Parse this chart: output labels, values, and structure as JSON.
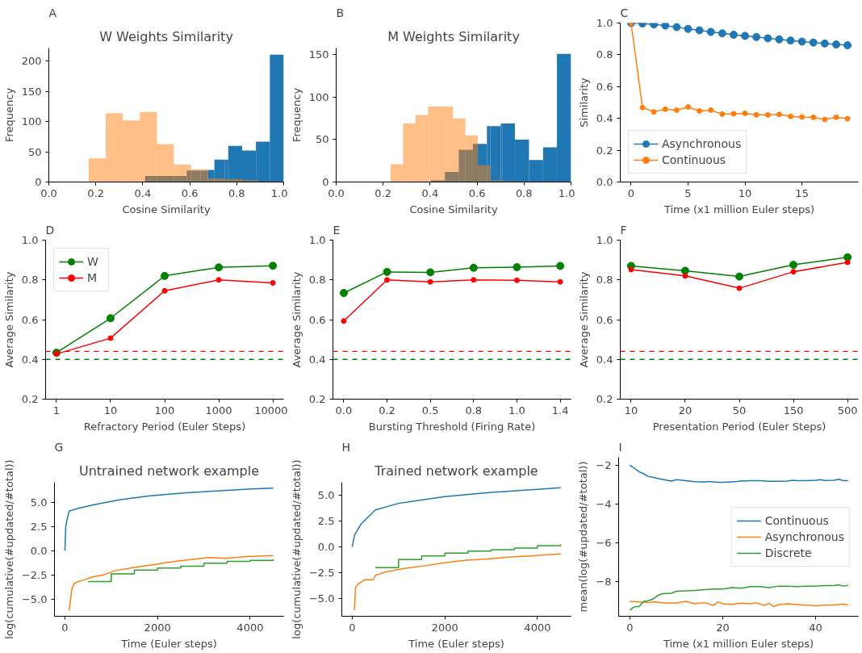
{
  "chart_data": [
    {
      "type": "histogram",
      "title": "W Weights Similarity",
      "annotations": [
        "A"
      ],
      "xlabel": "Cosine Similarity",
      "ylabel": "Frequency",
      "xlim": [
        0,
        1
      ],
      "xticks": [
        {
          "value": 0,
          "label": "0.0"
        },
        {
          "value": 0.2,
          "label": "0.2"
        },
        {
          "value": 0.4,
          "label": "0.4"
        },
        {
          "value": 0.6,
          "label": "0.6"
        },
        {
          "value": 0.8,
          "label": "0.8"
        },
        {
          "value": 1,
          "label": "1.0"
        }
      ],
      "ylim": [
        0,
        222
      ],
      "yticks": [
        0,
        50,
        100,
        150,
        200
      ],
      "series": [
        {
          "color": "#1f77b4",
          "values": [
            null,
            null,
            null,
            null,
            10,
            10,
            10,
            10,
            10,
            19,
            19,
            19,
            20,
            37,
            37,
            60,
            52,
            67,
            67,
            211
          ]
        },
        {
          "color": "#ff7f0e",
          "values": [
            39,
            114,
            102,
            116,
            116,
            63,
            63,
            63,
            29,
            29,
            21,
            21,
            6,
            6,
            5,
            5,
            3,
            3,
            null,
            null
          ]
        }
      ],
      "bins": [
        0.17,
        0.2425,
        0.315,
        0.3875,
        0.41,
        0.46,
        0.469,
        0.528,
        0.5325,
        0.587,
        0.605,
        0.646,
        0.6775,
        0.705,
        0.75,
        0.764,
        0.823,
        0.882,
        0.895,
        0.941,
        1.0
      ]
    },
    {
      "type": "histogram",
      "title": "M Weights Similarity",
      "annotations": [
        "B"
      ],
      "xlabel": "Cosine Similarity",
      "ylabel": "Frequency",
      "xlim": [
        0,
        1
      ],
      "xticks": [
        {
          "value": 0,
          "label": "0.0"
        },
        {
          "value": 0.2,
          "label": "0.2"
        },
        {
          "value": 0.4,
          "label": "0.4"
        },
        {
          "value": 0.6,
          "label": "0.6"
        },
        {
          "value": 0.8,
          "label": "0.8"
        },
        {
          "value": 1,
          "label": "1.0"
        }
      ],
      "ylim": [
        0,
        158
      ],
      "yticks": [
        0,
        50,
        100,
        150
      ],
      "series": [
        {
          "color": "#1f77b4",
          "values": [
            null,
            null,
            null,
            null,
            2,
            2,
            12,
            12,
            38,
            38,
            45,
            45,
            66,
            66,
            69,
            69,
            50,
            26,
            41,
            151
          ]
        },
        {
          "color": "#ff7f0e",
          "values": [
            21,
            69,
            79,
            89,
            89,
            89,
            89,
            75,
            75,
            55,
            55,
            20,
            20,
            2,
            2,
            1,
            null,
            null,
            null,
            null
          ]
        }
      ],
      "bins": [
        0.232,
        0.285,
        0.338,
        0.391,
        0.403,
        0.444,
        0.463,
        0.497,
        0.522,
        0.55,
        0.582,
        0.603,
        0.642,
        0.656,
        0.701,
        0.709,
        0.761,
        0.821,
        0.881,
        0.94,
        1.0
      ]
    },
    {
      "type": "line",
      "annotations": [
        "C"
      ],
      "xlabel": "Time (x1 million Euler steps)",
      "ylabel": "Similarity",
      "xlim": [
        -0.95,
        19.95
      ],
      "xticks": [
        0,
        5,
        10,
        15
      ],
      "ylim": [
        0,
        1
      ],
      "yticks": [
        {
          "value": 0,
          "label": "0.0"
        },
        {
          "value": 0.2,
          "label": "0.2"
        },
        {
          "value": 0.4,
          "label": "0.4"
        },
        {
          "value": 0.6,
          "label": "0.6"
        },
        {
          "value": 0.8,
          "label": "0.8"
        },
        {
          "value": 1,
          "label": "1.0"
        }
      ],
      "marker": "circle",
      "legend": "bottom left",
      "x": [
        0,
        1,
        2,
        3,
        4,
        5,
        6,
        7,
        8,
        9,
        10,
        11,
        12,
        13,
        14,
        15,
        16,
        17,
        18,
        19
      ],
      "series": [
        {
          "name": "Asynchronous",
          "color": "#1f77b4",
          "values": [
            1.0,
            0.997,
            0.991,
            0.984,
            0.974,
            0.963,
            0.954,
            0.944,
            0.935,
            0.926,
            0.919,
            0.912,
            0.904,
            0.897,
            0.89,
            0.883,
            0.877,
            0.871,
            0.865,
            0.86
          ]
        },
        {
          "name": "Continuous",
          "color": "#ff7f0e",
          "values": [
            1.0,
            0.468,
            0.441,
            0.458,
            0.452,
            0.472,
            0.447,
            0.452,
            0.427,
            0.429,
            0.432,
            0.422,
            0.422,
            0.425,
            0.413,
            0.409,
            0.407,
            0.393,
            0.407,
            0.398
          ]
        }
      ]
    },
    {
      "type": "line",
      "annotations": [
        "D"
      ],
      "xlabel": "Refractory Period (Euler Steps)",
      "ylabel": "Average Similarity",
      "categories": [
        "1",
        "10",
        "100",
        "1000",
        "10000"
      ],
      "ylim": [
        0.2,
        1
      ],
      "yticks": [
        {
          "value": 0.2,
          "label": "0.2"
        },
        {
          "value": 0.4,
          "label": "0.4"
        },
        {
          "value": 0.6,
          "label": "0.6"
        },
        {
          "value": 0.8,
          "label": "0.8"
        },
        {
          "value": 1,
          "label": "1.0"
        }
      ],
      "marker": "circle",
      "legend": "top left",
      "ref_lines": [
        {
          "axis": "y",
          "value": 0.44,
          "color": "#ff0000",
          "line_style": "dashed"
        },
        {
          "axis": "y",
          "value": 0.4,
          "color": "#008000",
          "line_style": "dashed"
        }
      ],
      "series": [
        {
          "name": "W",
          "color": "#008000",
          "values": [
            0.434,
            0.607,
            0.82,
            0.863,
            0.871
          ]
        },
        {
          "name": "M",
          "color": "#ff0000",
          "values": [
            0.427,
            0.507,
            0.745,
            0.8,
            0.785
          ]
        }
      ]
    },
    {
      "type": "line",
      "annotations": [
        "E"
      ],
      "xlabel": "Bursting Threshold (Firing Rate)",
      "ylabel": "Average Similarity",
      "categories": [
        "0.0",
        "0.2",
        "0.5",
        "0.8",
        "1.0",
        "1.4"
      ],
      "ylim": [
        0.2,
        1
      ],
      "yticks": [
        {
          "value": 0.2,
          "label": "0.2"
        },
        {
          "value": 0.4,
          "label": "0.4"
        },
        {
          "value": 0.6,
          "label": "0.6"
        },
        {
          "value": 0.8,
          "label": "0.8"
        },
        {
          "value": 1,
          "label": "1.0"
        }
      ],
      "marker": "circle",
      "ref_lines": [
        {
          "axis": "y",
          "value": 0.44,
          "color": "#ff0000",
          "line_style": "dashed"
        },
        {
          "axis": "y",
          "value": 0.4,
          "color": "#008000",
          "line_style": "dashed"
        }
      ],
      "series": [
        {
          "color": "#008000",
          "values": [
            0.734,
            0.84,
            0.838,
            0.861,
            0.864,
            0.87
          ]
        },
        {
          "color": "#ff0000",
          "values": [
            0.593,
            0.8,
            0.79,
            0.8,
            0.798,
            0.79
          ]
        }
      ]
    },
    {
      "type": "line",
      "annotations": [
        "F"
      ],
      "xlabel": "Presentation Period (Euler Steps)",
      "ylabel": "Average Similarity",
      "categories": [
        "10",
        "20",
        "50",
        "150",
        "500"
      ],
      "ylim": [
        0.2,
        1
      ],
      "yticks": [
        {
          "value": 0.2,
          "label": "0.2"
        },
        {
          "value": 0.4,
          "label": "0.4"
        },
        {
          "value": 0.6,
          "label": "0.6"
        },
        {
          "value": 0.8,
          "label": "0.8"
        },
        {
          "value": 1,
          "label": "1.0"
        }
      ],
      "marker": "circle",
      "ref_lines": [
        {
          "axis": "y",
          "value": 0.44,
          "color": "#ff0000",
          "line_style": "dashed"
        },
        {
          "axis": "y",
          "value": 0.4,
          "color": "#008000",
          "line_style": "dashed"
        }
      ],
      "series": [
        {
          "color": "#008000",
          "values": [
            0.87,
            0.846,
            0.817,
            0.876,
            0.914
          ]
        },
        {
          "color": "#ff0000",
          "values": [
            0.852,
            0.82,
            0.758,
            0.841,
            0.888
          ]
        }
      ]
    },
    {
      "type": "line",
      "title": "Untrained network example",
      "annotations": [
        "G"
      ],
      "xlabel": "Time (Euler steps)",
      "ylabel": "log(cumulative(#updated/#total))",
      "xlim": [
        -225,
        4725
      ],
      "xticks": [
        0,
        2000,
        4000
      ],
      "ylim": [
        -6.8,
        7.1
      ],
      "yticks": [
        {
          "value": -5,
          "label": "−5.0"
        },
        {
          "value": -2.5,
          "label": "−2.5"
        },
        {
          "value": 0,
          "label": "0.0"
        },
        {
          "value": 2.5,
          "label": "2.5"
        },
        {
          "value": 5,
          "label": "5.0"
        }
      ],
      "series": [
        {
          "color": "#1f77b4",
          "x": [
            0,
            18,
            45,
            90,
            290,
            650,
            1200,
            1840,
            2560,
            3290,
            4020,
            4500
          ],
          "values": [
            0.0,
            2.5,
            3.2,
            4.1,
            4.4,
            4.8,
            5.3,
            5.7,
            6.0,
            6.2,
            6.4,
            6.5
          ]
        },
        {
          "color": "#ff7f0e",
          "x": [
            90,
            120,
            150,
            200,
            290,
            430,
            610,
            840,
            1060,
            1290,
            1560,
            1840,
            2110,
            2380,
            2750,
            3110,
            3470,
            3930,
            4500
          ],
          "values": [
            -6.2,
            -5.2,
            -4.0,
            -3.4,
            -3.2,
            -3.0,
            -2.7,
            -2.5,
            -2.1,
            -1.9,
            -1.7,
            -1.5,
            -1.3,
            -1.1,
            -0.9,
            -0.7,
            -0.8,
            -0.6,
            -0.5
          ]
        },
        {
          "type": "step",
          "color": "#2ca02c",
          "x": [
            500,
            1000,
            1500,
            2000,
            2500,
            3000,
            3500,
            4000,
            4500
          ],
          "values": [
            -3.2,
            -2.4,
            -2.0,
            -1.8,
            -1.6,
            -1.3,
            -1.1,
            -1.0,
            -0.9
          ]
        }
      ]
    },
    {
      "type": "line",
      "title": "Trained network example",
      "annotations": [
        "H"
      ],
      "xlabel": "Time (Euler steps)",
      "ylabel": "log(cumulative(#updated/#total))",
      "xlim": [
        -225,
        4725
      ],
      "xticks": [
        0,
        2000,
        4000
      ],
      "ylim": [
        -6.7,
        6.26
      ],
      "yticks": [
        {
          "value": -5,
          "label": "−5.0"
        },
        {
          "value": -2.5,
          "label": "−2.5"
        },
        {
          "value": 0,
          "label": "0.0"
        },
        {
          "value": 2.5,
          "label": "2.5"
        },
        {
          "value": 5,
          "label": "5.0"
        }
      ],
      "series": [
        {
          "color": "#1f77b4",
          "x": [
            0,
            50,
            200,
            500,
            1000,
            2000,
            3000,
            4000,
            4500
          ],
          "values": [
            0.0,
            1.15,
            2.28,
            3.58,
            4.22,
            4.87,
            5.29,
            5.58,
            5.74
          ]
        },
        {
          "color": "#ff7f0e",
          "x": [
            46,
            73,
            137,
            274,
            457,
            502,
            731,
            1096,
            1553,
            2009,
            2466,
            2922,
            3379,
            3836,
            4500
          ],
          "values": [
            -6.14,
            -3.87,
            -3.54,
            -3.16,
            -3.16,
            -2.73,
            -2.41,
            -2.09,
            -1.83,
            -1.5,
            -1.28,
            -1.15,
            -0.99,
            -0.86,
            -0.66
          ]
        },
        {
          "type": "step",
          "color": "#2ca02c",
          "x": [
            500,
            1000,
            1500,
            2000,
            2500,
            3000,
            3500,
            4000,
            4500
          ],
          "values": [
            -1.99,
            -1.21,
            -0.86,
            -0.6,
            -0.4,
            -0.25,
            -0.1,
            0.13,
            0.25
          ]
        }
      ]
    },
    {
      "type": "line",
      "annotations": [
        "I"
      ],
      "xlabel": "Time (x1 million Euler steps)",
      "ylabel": "mean(log(#updated/#total))",
      "xlim": [
        -2.4,
        49.2
      ],
      "xticks": [
        0,
        20,
        40
      ],
      "ylim": [
        -9.77,
        -1.6
      ],
      "yticks": [
        {
          "value": -8,
          "label": "−8"
        },
        {
          "value": -6,
          "label": "−6"
        },
        {
          "value": -4,
          "label": "−4"
        },
        {
          "value": -2,
          "label": "−2"
        }
      ],
      "legend": "right",
      "series": [
        {
          "name": "Continuous",
          "color": "#1f77b4",
          "x": [
            0,
            1,
            2,
            3,
            4,
            5,
            6,
            8,
            9,
            10,
            12,
            14,
            16,
            17,
            19,
            20,
            22,
            24,
            26,
            28,
            30,
            32,
            34,
            35,
            36,
            38,
            40,
            41,
            42,
            44,
            45,
            46,
            47
          ],
          "values": [
            -2.0,
            -2.17,
            -2.34,
            -2.45,
            -2.59,
            -2.63,
            -2.69,
            -2.78,
            -2.82,
            -2.75,
            -2.8,
            -2.85,
            -2.88,
            -2.84,
            -2.89,
            -2.89,
            -2.86,
            -2.82,
            -2.8,
            -2.8,
            -2.83,
            -2.83,
            -2.82,
            -2.78,
            -2.8,
            -2.8,
            -2.78,
            -2.75,
            -2.79,
            -2.78,
            -2.73,
            -2.8,
            -2.8
          ]
        },
        {
          "name": "Asynchronous",
          "color": "#ff7f0e",
          "x": [
            0,
            2,
            4,
            5,
            8,
            10,
            12,
            14,
            16,
            18,
            19,
            20,
            22,
            24,
            26,
            27,
            29,
            30,
            31,
            32,
            34,
            36,
            38,
            40,
            42,
            44,
            46,
            47
          ],
          "values": [
            -9.0,
            -9.03,
            -9.07,
            -9.02,
            -9.1,
            -9.1,
            -9.0,
            -9.13,
            -9.07,
            -9.21,
            -9.03,
            -9.13,
            -9.16,
            -9.1,
            -9.13,
            -9.07,
            -9.21,
            -9.1,
            -9.28,
            -9.17,
            -9.13,
            -9.17,
            -9.2,
            -9.23,
            -9.2,
            -9.19,
            -9.14,
            -9.2
          ]
        },
        {
          "name": "Discrete",
          "color": "#2ca02c",
          "x": [
            0,
            1,
            2,
            3,
            4,
            5,
            6,
            7,
            9,
            10,
            14,
            16,
            18,
            20,
            22,
            24,
            26,
            28,
            30,
            32,
            34,
            36,
            38,
            40,
            42,
            44,
            45,
            46,
            47
          ],
          "values": [
            -9.45,
            -9.28,
            -9.27,
            -9.0,
            -8.97,
            -8.88,
            -8.7,
            -8.61,
            -8.59,
            -8.48,
            -8.44,
            -8.4,
            -8.37,
            -8.37,
            -8.3,
            -8.33,
            -8.25,
            -8.25,
            -8.3,
            -8.22,
            -8.22,
            -8.25,
            -8.22,
            -8.22,
            -8.19,
            -8.19,
            -8.15,
            -8.22,
            -8.18
          ]
        }
      ]
    }
  ]
}
